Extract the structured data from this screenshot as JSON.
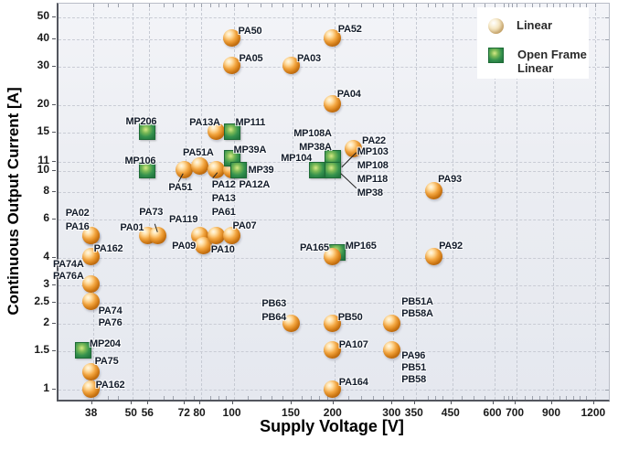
{
  "axes": {
    "x": {
      "title": "Supply Voltage [V]",
      "scale": "log",
      "domain": [
        30,
        1320
      ],
      "ticks": [
        38,
        50,
        56,
        72,
        80,
        100,
        150,
        200,
        300,
        350,
        450,
        600,
        700,
        900,
        1200
      ],
      "minor_ticks": [
        42,
        45,
        62,
        66,
        76,
        85,
        90,
        95,
        110,
        120,
        130,
        140,
        160,
        170,
        180,
        190,
        220,
        240,
        260,
        280,
        320,
        380,
        400,
        420,
        480,
        520,
        560,
        640,
        660,
        680,
        740,
        780,
        820,
        860,
        940,
        980,
        1030,
        1080,
        1130
      ]
    },
    "y": {
      "title": "Continuous Output Current [A]",
      "scale": "log",
      "domain": [
        0.9,
        58
      ],
      "ticks": [
        50,
        40,
        30,
        20,
        15,
        11,
        10,
        8,
        6,
        4,
        3,
        2.5,
        2,
        1.5,
        1
      ]
    }
  },
  "legend": {
    "position": "top-right",
    "items": [
      {
        "label": "Linear",
        "marker": "sphere"
      },
      {
        "label": "Open Frame Linear",
        "marker": "square"
      }
    ]
  },
  "colors": {
    "linear_marker": "#ef9322",
    "open_frame_marker": "#2e8b4a",
    "label_text": "#131c2b",
    "grid": "#c6cad3",
    "axis": "#53565e",
    "plot_bg_top": "#f3f4f8",
    "plot_bg_bottom": "#e5e8ef",
    "legend_sphere": "#e8d3a4"
  },
  "chart_data": {
    "type": "scatter",
    "xlabel": "Supply Voltage [V]",
    "ylabel": "Continuous Output Current [A]",
    "x_scale": "log",
    "y_scale": "log",
    "xlim": [
      30,
      1320
    ],
    "ylim": [
      0.9,
      58
    ],
    "grid": true,
    "legend_position": "top-right",
    "series": [
      {
        "name": "Linear",
        "marker": "sphere",
        "points": [
          {
            "label": [
              "PA50"
            ],
            "x": 100,
            "y": 40,
            "dx": 7,
            "dy": -14
          },
          {
            "label": [
              "PA05"
            ],
            "x": 100,
            "y": 30,
            "dx": 8,
            "dy": -14
          },
          {
            "label": [
              "PA52"
            ],
            "x": 200,
            "y": 40,
            "dx": 6,
            "dy": -16
          },
          {
            "label": [
              "PA03"
            ],
            "x": 150,
            "y": 30,
            "dx": 7,
            "dy": -14
          },
          {
            "label": [
              "PA04"
            ],
            "x": 200,
            "y": 20,
            "dx": 5,
            "dy": -17
          },
          {
            "label": [
              "PA13A"
            ],
            "x": 90,
            "y": 15,
            "anchor": "r",
            "dx": 4,
            "dy": -16
          },
          {
            "label": [
              "PA22"
            ],
            "x": 230,
            "y": 12.5,
            "dx": 10,
            "dy": -15
          },
          {
            "label": [
              "PA51"
            ],
            "x": 72,
            "y": 10,
            "anchor": "r",
            "dx": 9,
            "dy": 13,
            "leader": [
              [
                -6,
                13,
                -1,
                4
              ]
            ]
          },
          {
            "label": [
              "PA51A"
            ],
            "x": 80,
            "y": 10,
            "ny": -4,
            "dx": -18,
            "dy": -21
          },
          {
            "label": [
              "PA12",
              "PA13",
              "PA61"
            ],
            "x": 90,
            "y": 10,
            "dx": -5,
            "dy": 9,
            "lh": 15,
            "leader": [
              [
                -4,
                9,
                1,
                3
              ]
            ]
          },
          {
            "label": [
              "PA12A"
            ],
            "x": 100,
            "y": 10,
            "dx": 8,
            "dy": 10
          },
          {
            "label": [
              "PA93"
            ],
            "x": 400,
            "y": 8,
            "dx": 5,
            "dy": -19
          },
          {
            "label": [
              "PA02"
            ],
            "x": 38,
            "y": 5,
            "anchor": "r",
            "dx": -2,
            "dy": -31
          },
          {
            "label": [
              "PA16"
            ],
            "x": 38,
            "y": 5,
            "anchor": "r",
            "dx": -2,
            "dy": -16
          },
          {
            "label": [
              "PA01"
            ],
            "x": 56,
            "y": 5,
            "anchor": "r",
            "dx": -4,
            "dy": -15
          },
          {
            "label": [
              "PA73"
            ],
            "x": 60,
            "y": 5,
            "dx": -20,
            "dy": -32,
            "leader": [
              [
                -3,
                -13,
                0,
                -4
              ]
            ]
          },
          {
            "label": [
              "PA119"
            ],
            "x": 80,
            "y": 5,
            "dx": -33,
            "dy": -24
          },
          {
            "label": [
              "PA09"
            ],
            "x": 80,
            "y": 4.5,
            "nx": 4,
            "anchor": "r",
            "dx": -8,
            "dy": -6
          },
          {
            "label": [
              "PA10"
            ],
            "x": 90,
            "y": 5,
            "dx": -6,
            "dy": 9
          },
          {
            "label": [
              "PA07"
            ],
            "x": 100,
            "y": 5,
            "dx": 1,
            "dy": -17
          },
          {
            "label": [
              "PA162"
            ],
            "x": 38,
            "y": 4,
            "dx": 3,
            "dy": -15
          },
          {
            "label": [
              "PA74A",
              "PA76A"
            ],
            "x": 38,
            "y": 3,
            "anchor": "r",
            "dx": -8,
            "dy": -28
          },
          {
            "label": [
              "PA74",
              "PA76"
            ],
            "x": 38,
            "y": 2.5,
            "dx": 8,
            "dy": 4
          },
          {
            "label": [
              "PA165"
            ],
            "x": 200,
            "y": 4,
            "anchor": "r",
            "dx": -4,
            "dy": -16
          },
          {
            "label": [
              "PA92"
            ],
            "x": 400,
            "y": 4,
            "dx": 6,
            "dy": -18
          },
          {
            "label": [
              "PA75"
            ],
            "x": 38,
            "y": 1.2,
            "dx": 4,
            "dy": -17
          },
          {
            "label": [
              "PA162"
            ],
            "x": 38,
            "y": 1,
            "dx": 5,
            "dy": -10
          },
          {
            "label": [
              "PB63",
              "PB64"
            ],
            "x": 150,
            "y": 2,
            "anchor": "r",
            "dx": -5,
            "dy": -28,
            "lh": 15
          },
          {
            "label": [
              "PB50"
            ],
            "x": 200,
            "y": 2,
            "dx": 6,
            "dy": -12
          },
          {
            "label": [
              "PA107"
            ],
            "x": 200,
            "y": 1.5,
            "dx": 7,
            "dy": -12
          },
          {
            "label": [
              "PB51A",
              "PB58A"
            ],
            "x": 300,
            "y": 2,
            "dx": 11,
            "dy": -29
          },
          {
            "label": [
              "PA96",
              "PB51",
              "PB58"
            ],
            "x": 300,
            "y": 1.5,
            "dx": 11,
            "dy": 0
          },
          {
            "label": [
              "PA164"
            ],
            "x": 200,
            "y": 1,
            "dx": 7,
            "dy": -13
          }
        ]
      },
      {
        "name": "Open Frame Linear",
        "marker": "square",
        "points": [
          {
            "label": [
              "MP206"
            ],
            "x": 56,
            "y": 15,
            "anchor": "r",
            "dx": 10,
            "dy": -17
          },
          {
            "label": [
              "MP111"
            ],
            "x": 100,
            "y": 15,
            "dx": 4,
            "dy": -16
          },
          {
            "label": [
              "MP108A",
              "MP38A"
            ],
            "x": 200,
            "y": 11,
            "ny": -3,
            "anchor": "r",
            "dx": -1,
            "dy": -34,
            "lh": 15
          },
          {
            "label": [
              "MP104"
            ],
            "x": 180,
            "y": 10,
            "anchor": "r",
            "dx": -6,
            "dy": -19
          },
          {
            "label": [
              "MP103",
              "MP108",
              "MP118",
              "MP38"
            ],
            "x": 200,
            "y": 10,
            "dx": 27,
            "dy": -27,
            "lh": 15,
            "leader": [
              [
                10,
                -3,
                26,
                -19
              ],
              [
                9,
                4,
                26,
                20
              ]
            ]
          },
          {
            "label": [
              "MP106"
            ],
            "x": 56,
            "y": 10,
            "anchor": "r",
            "dx": 9,
            "dy": -16
          },
          {
            "label": [
              "MP39A"
            ],
            "x": 100,
            "y": 11,
            "ny": -3,
            "dx": 2,
            "dy": -15
          },
          {
            "label": [
              "MP39"
            ],
            "x": 100,
            "y": 10,
            "nx": 7,
            "dx": 11,
            "dy": -6
          },
          {
            "label": [
              "MP165"
            ],
            "x": 200,
            "y": 4,
            "nx": 5,
            "ny": -5,
            "z": 1,
            "dx": 9,
            "dy": -13
          },
          {
            "label": [
              "MP204"
            ],
            "x": 36,
            "y": 1.5,
            "dx": 7,
            "dy": -13
          }
        ]
      }
    ]
  }
}
